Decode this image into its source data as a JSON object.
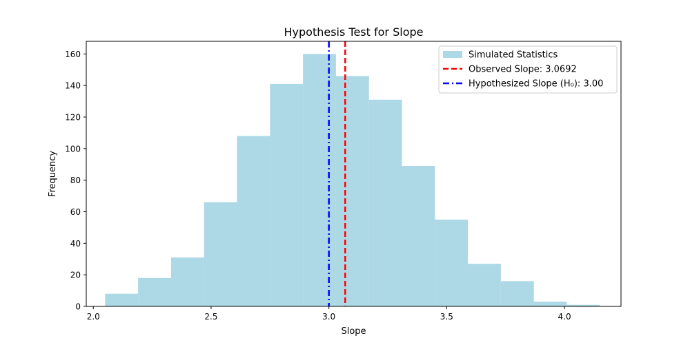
{
  "chart_data": {
    "type": "bar",
    "title": "Hypothesis Test for Slope",
    "xlabel": "Slope",
    "ylabel": "Frequency",
    "xlim": [
      1.97,
      4.24
    ],
    "ylim": [
      0,
      168
    ],
    "xticks": [
      2.0,
      2.5,
      3.0,
      3.5,
      4.0
    ],
    "xtick_labels": [
      "2.0",
      "2.5",
      "3.0",
      "3.5",
      "4.0"
    ],
    "yticks": [
      0,
      20,
      40,
      60,
      80,
      100,
      120,
      140,
      160
    ],
    "ytick_labels": [
      "0",
      "20",
      "40",
      "60",
      "80",
      "100",
      "120",
      "140",
      "160"
    ],
    "bin_edges": [
      2.05,
      2.19,
      2.33,
      2.47,
      2.61,
      2.75,
      2.89,
      3.03,
      3.17,
      3.31,
      3.45,
      3.59,
      3.73,
      3.87,
      4.01,
      4.15
    ],
    "counts": [
      8,
      18,
      31,
      66,
      108,
      141,
      160,
      146,
      131,
      89,
      55,
      27,
      16,
      3,
      1
    ],
    "bar_color": "#add8e6",
    "lines": [
      {
        "name": "Observed Slope: 3.0692",
        "x": 3.0692,
        "color": "#ff0000",
        "style": "dashed"
      },
      {
        "name": "Hypothesized Slope (H₀): 3.00",
        "x": 3.0,
        "color": "#0000ff",
        "style": "dashdot"
      }
    ],
    "legend": {
      "position": "top-right",
      "entries": [
        {
          "label": "Simulated Statistics",
          "kind": "patch",
          "color": "#add8e6"
        },
        {
          "label": "Observed Slope: 3.0692",
          "kind": "line",
          "color": "#ff0000",
          "style": "dashed"
        },
        {
          "label": "Hypothesized Slope (H₀): 3.00",
          "kind": "line",
          "color": "#0000ff",
          "style": "dashdot"
        }
      ]
    }
  }
}
